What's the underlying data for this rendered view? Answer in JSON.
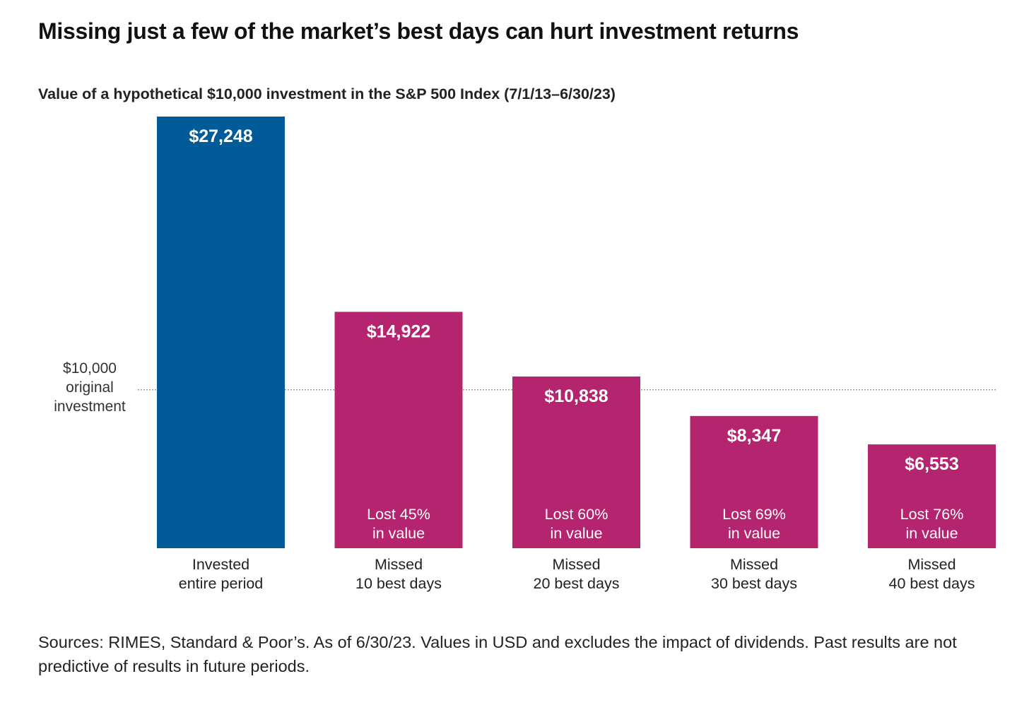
{
  "title": "Missing just a few of the market’s best days can hurt investment returns",
  "footnote": "Sources: RIMES, Standard & Poor’s. As of 6/30/23. Values in USD and excludes the impact of dividends. Past results are not predictive of results in future periods.",
  "colors": {
    "invested": "#005b98",
    "missed": "#b5256f",
    "reference_line": "#888888"
  },
  "chart_data": {
    "type": "bar",
    "title": "Value of a hypothetical $10,000 investment in the S&P 500 Index (7/1/13–6/30/23)",
    "xlabel": "",
    "ylabel": "",
    "ylim": [
      0,
      27248
    ],
    "grid": false,
    "legend": "none",
    "categories": [
      [
        "Invested",
        "entire period"
      ],
      [
        "Missed",
        "10 best days"
      ],
      [
        "Missed",
        "20 best days"
      ],
      [
        "Missed",
        "30 best days"
      ],
      [
        "Missed",
        "40 best days"
      ]
    ],
    "values": [
      27248,
      14922,
      10838,
      8347,
      6553
    ],
    "value_labels": [
      "$27,248",
      "$14,922",
      "$10,838",
      "$8,347",
      "$6,553"
    ],
    "annotations": [
      null,
      [
        "Lost 45%",
        "in value"
      ],
      [
        "Lost 60%",
        "in value"
      ],
      [
        "Lost 69%",
        "in value"
      ],
      [
        "Lost 76%",
        "in value"
      ]
    ],
    "reference_line": {
      "value": 10000,
      "label": [
        "$10,000",
        "original",
        "investment"
      ]
    }
  }
}
